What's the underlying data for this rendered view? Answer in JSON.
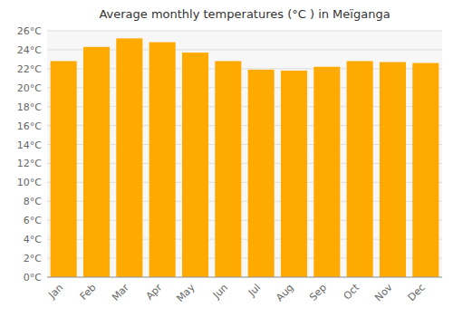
{
  "chart_data": {
    "type": "bar",
    "title": "Average monthly temperatures (°C ) in Meïganga",
    "categories": [
      "Jan",
      "Feb",
      "Mar",
      "Apr",
      "May",
      "Jun",
      "Jul",
      "Aug",
      "Sep",
      "Oct",
      "Nov",
      "Dec"
    ],
    "values": [
      22.8,
      24.3,
      25.2,
      24.8,
      23.7,
      22.8,
      21.9,
      21.8,
      22.2,
      22.8,
      22.7,
      22.6
    ],
    "color": "#FFAA00",
    "ylim": [
      0,
      26
    ],
    "yticks": [
      {
        "value": 0,
        "label": "0°C"
      },
      {
        "value": 2,
        "label": "2°C"
      },
      {
        "value": 4,
        "label": "4°C"
      },
      {
        "value": 6,
        "label": "6°C"
      },
      {
        "value": 8,
        "label": "8°C"
      },
      {
        "value": 10,
        "label": "10°C"
      },
      {
        "value": 12,
        "label": "12°C"
      },
      {
        "value": 14,
        "label": "14°C"
      },
      {
        "value": 16,
        "label": "16°C"
      },
      {
        "value": 18,
        "label": "18°C"
      },
      {
        "value": 20,
        "label": "20°C"
      },
      {
        "value": 22,
        "label": "22°C"
      },
      {
        "value": 24,
        "label": "24°C"
      },
      {
        "value": 26,
        "label": "26°C"
      }
    ],
    "grid": true
  }
}
